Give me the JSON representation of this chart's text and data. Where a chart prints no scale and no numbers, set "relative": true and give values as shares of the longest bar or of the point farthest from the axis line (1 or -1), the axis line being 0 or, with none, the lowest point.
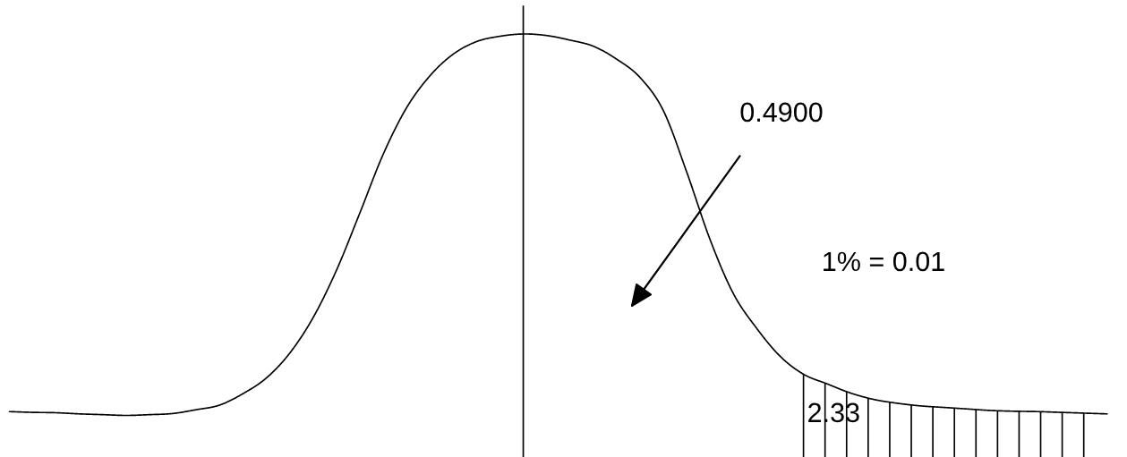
{
  "chart_data": {
    "type": "line",
    "relative": true,
    "color": "#000000",
    "categories": [
      null,
      null,
      null,
      null,
      null,
      null,
      null,
      null,
      null,
      null,
      null,
      null,
      null,
      null,
      null,
      null,
      null,
      null,
      null,
      null,
      null,
      null,
      null,
      null,
      null,
      null,
      null,
      null,
      null,
      null,
      null,
      null,
      null,
      null,
      null,
      null,
      null,
      null,
      null,
      null,
      null,
      null,
      null,
      null,
      null,
      null,
      null,
      null
    ],
    "values": [
      0.01,
      0.008,
      0.007,
      0.004,
      0.002,
      0.0,
      0.002,
      0.005,
      0.015,
      0.027,
      0.057,
      0.098,
      0.163,
      0.256,
      0.38,
      0.53,
      0.684,
      0.806,
      0.89,
      0.947,
      0.98,
      0.994,
      1.0,
      0.996,
      0.984,
      0.968,
      0.934,
      0.886,
      0.799,
      0.638,
      0.461,
      0.319,
      0.228,
      0.155,
      0.108,
      0.083,
      0.059,
      0.042,
      0.032,
      0.025,
      0.021,
      0.017,
      0.013,
      0.011,
      0.01,
      0.008,
      0.006,
      0.004
    ],
    "ref_lines": [
      {
        "axis": "x",
        "color": "#000000"
      }
    ],
    "annotations": [
      "0.4900",
      "1% = 0.01",
      "2.33"
    ]
  }
}
